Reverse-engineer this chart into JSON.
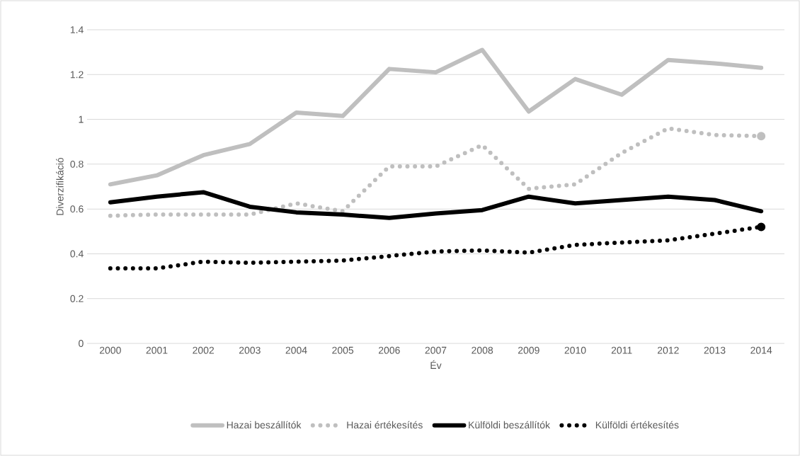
{
  "chart_data": {
    "type": "line",
    "xlabel": "Év",
    "ylabel": "Diverzifikáció",
    "categories": [
      "2000",
      "2001",
      "2002",
      "2003",
      "2004",
      "2005",
      "2006",
      "2007",
      "2008",
      "2009",
      "2010",
      "2011",
      "2012",
      "2013",
      "2014"
    ],
    "series": [
      {
        "name": "Hazai beszállítók",
        "color": "#bfbfbf",
        "line_style": "solid",
        "values": [
          0.71,
          0.75,
          0.84,
          0.89,
          1.03,
          1.015,
          1.225,
          1.21,
          1.31,
          1.035,
          1.18,
          1.11,
          1.265,
          1.25,
          1.23
        ]
      },
      {
        "name": "Hazai értékesítés",
        "color": "#bfbfbf",
        "line_style": "dotted",
        "values": [
          0.57,
          0.575,
          0.575,
          0.575,
          0.625,
          0.59,
          0.79,
          0.79,
          0.885,
          0.69,
          0.71,
          0.85,
          0.96,
          0.93,
          0.925
        ]
      },
      {
        "name": "Külföldi beszállítók",
        "color": "#000000",
        "line_style": "solid",
        "values": [
          0.63,
          0.655,
          0.675,
          0.61,
          0.585,
          0.575,
          0.56,
          0.58,
          0.595,
          0.655,
          0.625,
          0.64,
          0.655,
          0.64,
          0.59
        ]
      },
      {
        "name": "Külföldi értékesítés",
        "color": "#000000",
        "line_style": "dotted",
        "values": [
          0.335,
          0.335,
          0.365,
          0.36,
          0.365,
          0.37,
          0.39,
          0.41,
          0.415,
          0.405,
          0.44,
          0.45,
          0.46,
          0.49,
          0.52
        ]
      }
    ],
    "ylim": [
      0,
      1.4
    ],
    "yticks": [
      0,
      0.2,
      0.4,
      0.6,
      0.8,
      1,
      1.2,
      1.4
    ],
    "grid": "y",
    "legend": "bottom"
  }
}
